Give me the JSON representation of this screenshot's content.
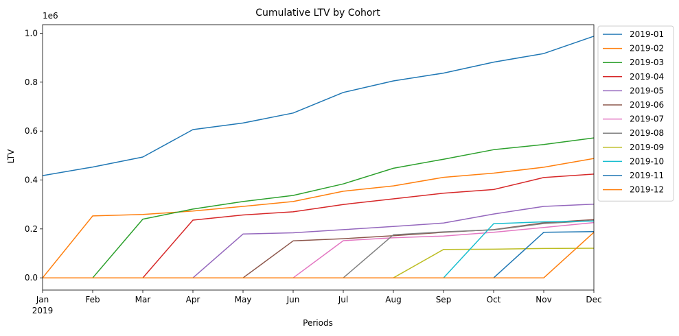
{
  "chart_data": {
    "type": "line",
    "title": "Cumulative LTV by Cohort",
    "xlabel": "Periods",
    "ylabel": "LTV",
    "y_offset_label": "1e6",
    "x": [
      "Jan",
      "Feb",
      "Mar",
      "Apr",
      "May",
      "Jun",
      "Jul",
      "Aug",
      "Sep",
      "Oct",
      "Nov",
      "Dec"
    ],
    "x_year_label": "2019",
    "ylim": [
      -0.05,
      1.035
    ],
    "y_ticks": [
      0.0,
      0.2,
      0.4,
      0.6,
      0.8,
      1.0
    ],
    "y_tick_labels": [
      "0.0",
      "0.2",
      "0.4",
      "0.6",
      "0.8",
      "1.0"
    ],
    "grid": false,
    "legend_position": "outside-right-top",
    "series": [
      {
        "name": "2019-01",
        "color": "#1f77b4",
        "values": [
          0.418,
          0.453,
          0.494,
          0.606,
          0.633,
          0.674,
          0.758,
          0.805,
          0.837,
          0.882,
          0.917,
          0.988
        ]
      },
      {
        "name": "2019-02",
        "color": "#ff7f0e",
        "values": [
          0,
          0.253,
          0.259,
          0.273,
          0.292,
          0.312,
          0.354,
          0.376,
          0.411,
          0.428,
          0.452,
          0.488
        ]
      },
      {
        "name": "2019-03",
        "color": "#2ca02c",
        "values": [
          0,
          0,
          0.24,
          0.281,
          0.312,
          0.337,
          0.384,
          0.448,
          0.485,
          0.524,
          0.545,
          0.572
        ]
      },
      {
        "name": "2019-04",
        "color": "#d62728",
        "values": [
          0,
          0,
          0,
          0.236,
          0.257,
          0.27,
          0.3,
          0.323,
          0.346,
          0.361,
          0.41,
          0.424
        ]
      },
      {
        "name": "2019-05",
        "color": "#9467bd",
        "values": [
          0,
          0,
          0,
          0,
          0.179,
          0.184,
          0.197,
          0.21,
          0.224,
          0.261,
          0.292,
          0.301
        ]
      },
      {
        "name": "2019-06",
        "color": "#8c564b",
        "values": [
          0,
          0,
          0,
          0,
          0,
          0.151,
          0.16,
          0.172,
          0.186,
          0.197,
          0.225,
          0.238
        ]
      },
      {
        "name": "2019-07",
        "color": "#e377c2",
        "values": [
          0,
          0,
          0,
          0,
          0,
          0,
          0.152,
          0.164,
          0.171,
          0.186,
          0.206,
          0.226
        ]
      },
      {
        "name": "2019-08",
        "color": "#7f7f7f",
        "values": [
          0,
          0,
          0,
          0,
          0,
          0,
          0,
          0.176,
          0.188,
          0.196,
          0.222,
          0.234
        ]
      },
      {
        "name": "2019-09",
        "color": "#bcbd22",
        "values": [
          0,
          0,
          0,
          0,
          0,
          0,
          0,
          0,
          0.116,
          0.117,
          0.12,
          0.121
        ]
      },
      {
        "name": "2019-10",
        "color": "#17becf",
        "values": [
          0,
          0,
          0,
          0,
          0,
          0,
          0,
          0,
          0,
          0.221,
          0.229,
          0.232
        ]
      },
      {
        "name": "2019-11",
        "color": "#1f77b4",
        "values": [
          0,
          0,
          0,
          0,
          0,
          0,
          0,
          0,
          0,
          0,
          0.186,
          0.189
        ]
      },
      {
        "name": "2019-12",
        "color": "#ff7f0e",
        "values": [
          0,
          0,
          0,
          0,
          0,
          0,
          0,
          0,
          0,
          0,
          0,
          0.186
        ]
      }
    ]
  }
}
